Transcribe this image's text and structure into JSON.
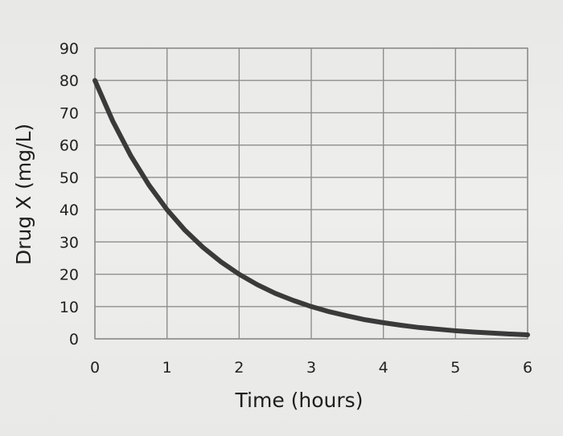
{
  "chart_data": {
    "type": "line",
    "title": "",
    "xlabel": "Time (hours)",
    "ylabel": "Drug X (mg/L)",
    "xlim": [
      0,
      6
    ],
    "ylim": [
      0,
      90
    ],
    "x_ticks": [
      0,
      1,
      2,
      3,
      4,
      5,
      6
    ],
    "y_ticks": [
      0,
      10,
      20,
      30,
      40,
      50,
      60,
      70,
      80,
      90
    ],
    "grid": true,
    "legend": "none",
    "series": [
      {
        "color": "#3a3a3a",
        "x": [
          0,
          0.25,
          0.5,
          0.75,
          1,
          1.25,
          1.5,
          1.75,
          2,
          2.25,
          2.5,
          2.75,
          3,
          3.25,
          3.5,
          3.75,
          4,
          4.25,
          4.5,
          4.75,
          5,
          5.25,
          5.5,
          5.75,
          6
        ],
        "y": [
          80,
          67.3,
          56.6,
          47.6,
          40,
          33.6,
          28.3,
          23.8,
          20,
          16.8,
          14.1,
          11.9,
          10,
          8.4,
          7.1,
          5.9,
          5,
          4.2,
          3.5,
          3.0,
          2.5,
          2.1,
          1.8,
          1.5,
          1.25
        ]
      }
    ]
  }
}
